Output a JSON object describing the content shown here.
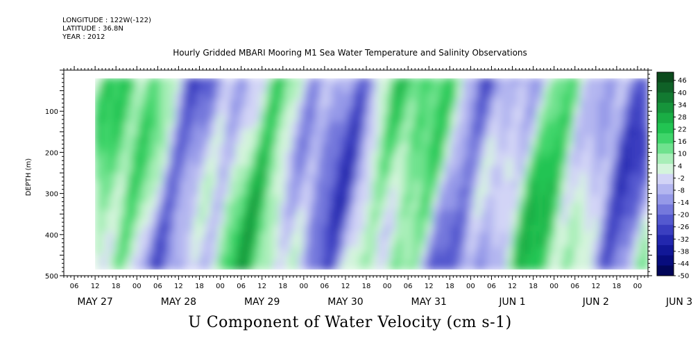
{
  "header": {
    "longitude": "LONGITUDE : 122W(-122)",
    "latitude": "LATITUDE : 36.8N",
    "year": "YEAR : 2012"
  },
  "chart_data": {
    "type": "heatmap",
    "title": "Hourly Gridded MBARI Mooring M1 Sea Water Temperature and Salinity Observations",
    "main_title": "U Component of Water Velocity (cm s-1)",
    "ylabel": "DEPTH (m)",
    "y_inverted": true,
    "ylim": [
      0,
      500
    ],
    "data_depth_range": [
      20,
      485
    ],
    "y_ticks": [
      100,
      200,
      300,
      400,
      500
    ],
    "x_range": [
      "2012-05-27T03:00",
      "2012-06-03T03:00"
    ],
    "data_start": "2012-05-27T12:00",
    "x_hour_ticks": [
      "06",
      "12",
      "18",
      "00",
      "06",
      "12",
      "18",
      "00",
      "06",
      "12",
      "18",
      "00",
      "06",
      "12",
      "18",
      "00",
      "06",
      "12",
      "18",
      "00",
      "06",
      "12",
      "18",
      "00",
      "06",
      "12",
      "18",
      "00"
    ],
    "x_date_labels": [
      "MAY 27",
      "MAY 28",
      "MAY 29",
      "MAY 30",
      "MAY 31",
      "JUN  1",
      "JUN  2",
      "JUN  3"
    ],
    "colorbar": {
      "levels": [
        "46",
        "40",
        "34",
        "28",
        "22",
        "16",
        "10",
        "4",
        "-2",
        "-8",
        "-14",
        "-20",
        "-26",
        "-32",
        "-38",
        "-44",
        "-50"
      ],
      "min": -50,
      "max": 50,
      "colors_high_to_low": [
        "#0b4a1c",
        "#0f6127",
        "#127a31",
        "#16943b",
        "#1aae45",
        "#22c452",
        "#3fd56a",
        "#6fe28e",
        "#a8eeb8",
        "#d4f4dc",
        "#d2d4f6",
        "#b3b6f0",
        "#9599e8",
        "#7478dc",
        "#5459cf",
        "#3a3ec0",
        "#2227ae",
        "#111797",
        "#070c7d",
        "#020659"
      ]
    },
    "grid": false,
    "legend": "colorbar-right"
  }
}
